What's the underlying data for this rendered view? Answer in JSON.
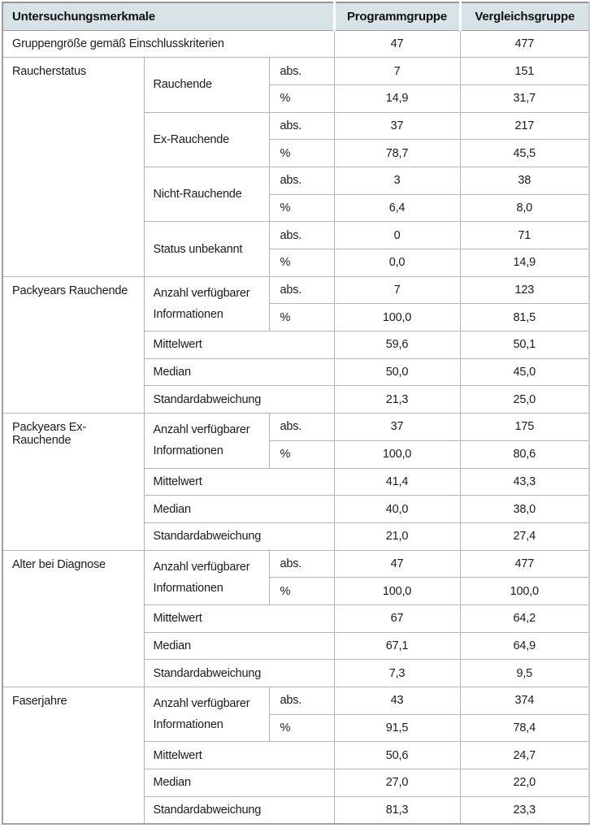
{
  "colors": {
    "header_bg": "#d8e3e7",
    "grid_border": "#b4b4b4",
    "outer_border": "#949494",
    "text": "#1b1b1b"
  },
  "table": {
    "header": {
      "merkmale": "Untersuchungsmerkmale",
      "programmgruppe": "Programmgruppe",
      "vergleichsgruppe": "Vergleichsgruppe"
    },
    "labels": {
      "abs": "abs.",
      "pct": "%",
      "anzahl": "Anzahl verfügbarer Informationen",
      "mittelwert": "Mittelwert",
      "median": "Median",
      "std": "Standardabweichung"
    },
    "size_row": {
      "label": "Gruppengröße gemäß Einschlusskriterien",
      "values": [
        "47",
        "477"
      ]
    },
    "raucherstatus": {
      "label": "Raucherstatus",
      "groups": [
        {
          "label": "Rauchende",
          "abs": [
            "7",
            "151"
          ],
          "pct": [
            "14,9",
            "31,7"
          ]
        },
        {
          "label": "Ex-Rauchende",
          "abs": [
            "37",
            "217"
          ],
          "pct": [
            "78,7",
            "45,5"
          ]
        },
        {
          "label": "Nicht-Rauchende",
          "abs": [
            "3",
            "38"
          ],
          "pct": [
            "6,4",
            "8,0"
          ]
        },
        {
          "label": "Status unbekannt",
          "abs": [
            "0",
            "71"
          ],
          "pct": [
            "0,0",
            "14,9"
          ]
        }
      ]
    },
    "sections": [
      {
        "label": "Packyears Rauchende",
        "abs": [
          "7",
          "123"
        ],
        "pct": [
          "100,0",
          "81,5"
        ],
        "mittelwert": [
          "59,6",
          "50,1"
        ],
        "median": [
          "50,0",
          "45,0"
        ],
        "std": [
          "21,3",
          "25,0"
        ]
      },
      {
        "label": "Packyears Ex-Rauchende",
        "abs": [
          "37",
          "175"
        ],
        "pct": [
          "100,0",
          "80,6"
        ],
        "mittelwert": [
          "41,4",
          "43,3"
        ],
        "median": [
          "40,0",
          "38,0"
        ],
        "std": [
          "21,0",
          "27,4"
        ]
      },
      {
        "label": "Alter bei Diagnose",
        "abs": [
          "47",
          "477"
        ],
        "pct": [
          "100,0",
          "100,0"
        ],
        "mittelwert": [
          "67",
          "64,2"
        ],
        "median": [
          "67,1",
          "64,9"
        ],
        "std": [
          "7,3",
          "9,5"
        ]
      },
      {
        "label": "Faserjahre",
        "abs": [
          "43",
          "374"
        ],
        "pct": [
          "91,5",
          "78,4"
        ],
        "mittelwert": [
          "50,6",
          "24,7"
        ],
        "median": [
          "27,0",
          "22,0"
        ],
        "std": [
          "81,3",
          "23,3"
        ]
      }
    ]
  }
}
